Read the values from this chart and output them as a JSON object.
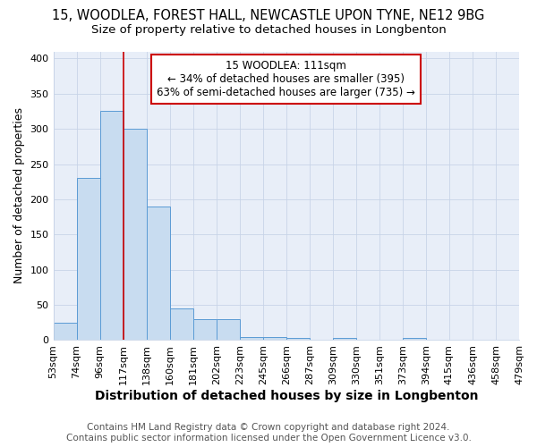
{
  "title": "15, WOODLEA, FOREST HALL, NEWCASTLE UPON TYNE, NE12 9BG",
  "subtitle": "Size of property relative to detached houses in Longbenton",
  "xlabel": "Distribution of detached houses by size in Longbenton",
  "ylabel": "Number of detached properties",
  "footer_line1": "Contains HM Land Registry data © Crown copyright and database right 2024.",
  "footer_line2": "Contains public sector information licensed under the Open Government Licence v3.0.",
  "bar_values": [
    25,
    230,
    325,
    300,
    190,
    45,
    30,
    30,
    5,
    5,
    3,
    0,
    3,
    0,
    0,
    3,
    0,
    0,
    0,
    1
  ],
  "xtick_labels": [
    "53sqm",
    "74sqm",
    "96sqm",
    "117sqm",
    "138sqm",
    "160sqm",
    "181sqm",
    "202sqm",
    "223sqm",
    "245sqm",
    "266sqm",
    "287sqm",
    "309sqm",
    "330sqm",
    "351sqm",
    "373sqm",
    "394sqm",
    "415sqm",
    "436sqm",
    "458sqm",
    "479sqm"
  ],
  "bar_color": "#c8dcf0",
  "bar_edge_color": "#5b9bd5",
  "vline_color": "#cc0000",
  "annotation_text": "15 WOODLEA: 111sqm\n← 34% of detached houses are smaller (395)\n63% of semi-detached houses are larger (735) →",
  "annotation_box_color": "#cc0000",
  "annotation_box_fill": "#ffffff",
  "ylim": [
    0,
    410
  ],
  "yticks": [
    0,
    50,
    100,
    150,
    200,
    250,
    300,
    350,
    400
  ],
  "title_fontsize": 10.5,
  "subtitle_fontsize": 9.5,
  "xlabel_fontsize": 10,
  "ylabel_fontsize": 9,
  "tick_fontsize": 8,
  "footer_fontsize": 7.5,
  "bg_color": "#ffffff",
  "plot_bg_color": "#e8eef8",
  "grid_color": "#c8d4e8"
}
